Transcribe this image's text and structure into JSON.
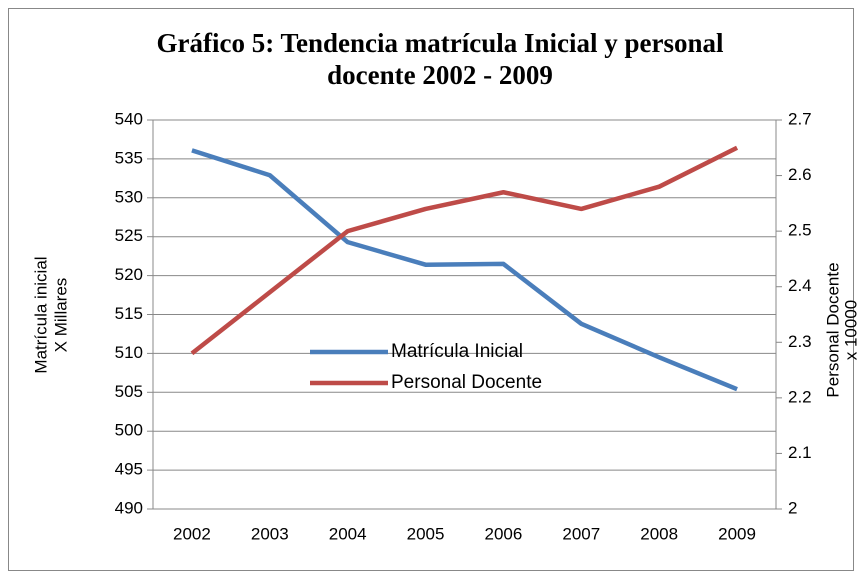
{
  "chart_data": {
    "type": "line",
    "title": [
      "Gráfico 5: Tendencia matrícula Inicial y personal",
      "docente 2002 - 2009"
    ],
    "ylabel": [
      "Matrícula inicial",
      "X Millares"
    ],
    "y2label": [
      "Personal Docente",
      "x 10000"
    ],
    "categories": [
      "2002",
      "2003",
      "2004",
      "2005",
      "2006",
      "2007",
      "2008",
      "2009"
    ],
    "series": [
      {
        "name": "Matrícula Inicial",
        "color": "#4a7ebb",
        "values": [
          536.1,
          532.9,
          524.3,
          521.4,
          521.5,
          513.8,
          509.5,
          505.4
        ]
      },
      {
        "name": "Personal Docente",
        "color": "#be4b48",
        "axis": "y2",
        "values": [
          2.28,
          2.39,
          2.5,
          2.54,
          2.57,
          2.54,
          2.58,
          2.65
        ]
      }
    ],
    "ylim": [
      490,
      540
    ],
    "yticks": [
      490,
      495,
      500,
      505,
      510,
      515,
      520,
      525,
      530,
      535,
      540
    ],
    "y2lim": [
      2,
      2.7
    ],
    "y2ticks": [
      2,
      2.1,
      2.2,
      2.3,
      2.4,
      2.5,
      2.6,
      2.7
    ],
    "grid": true,
    "legend": "center"
  }
}
